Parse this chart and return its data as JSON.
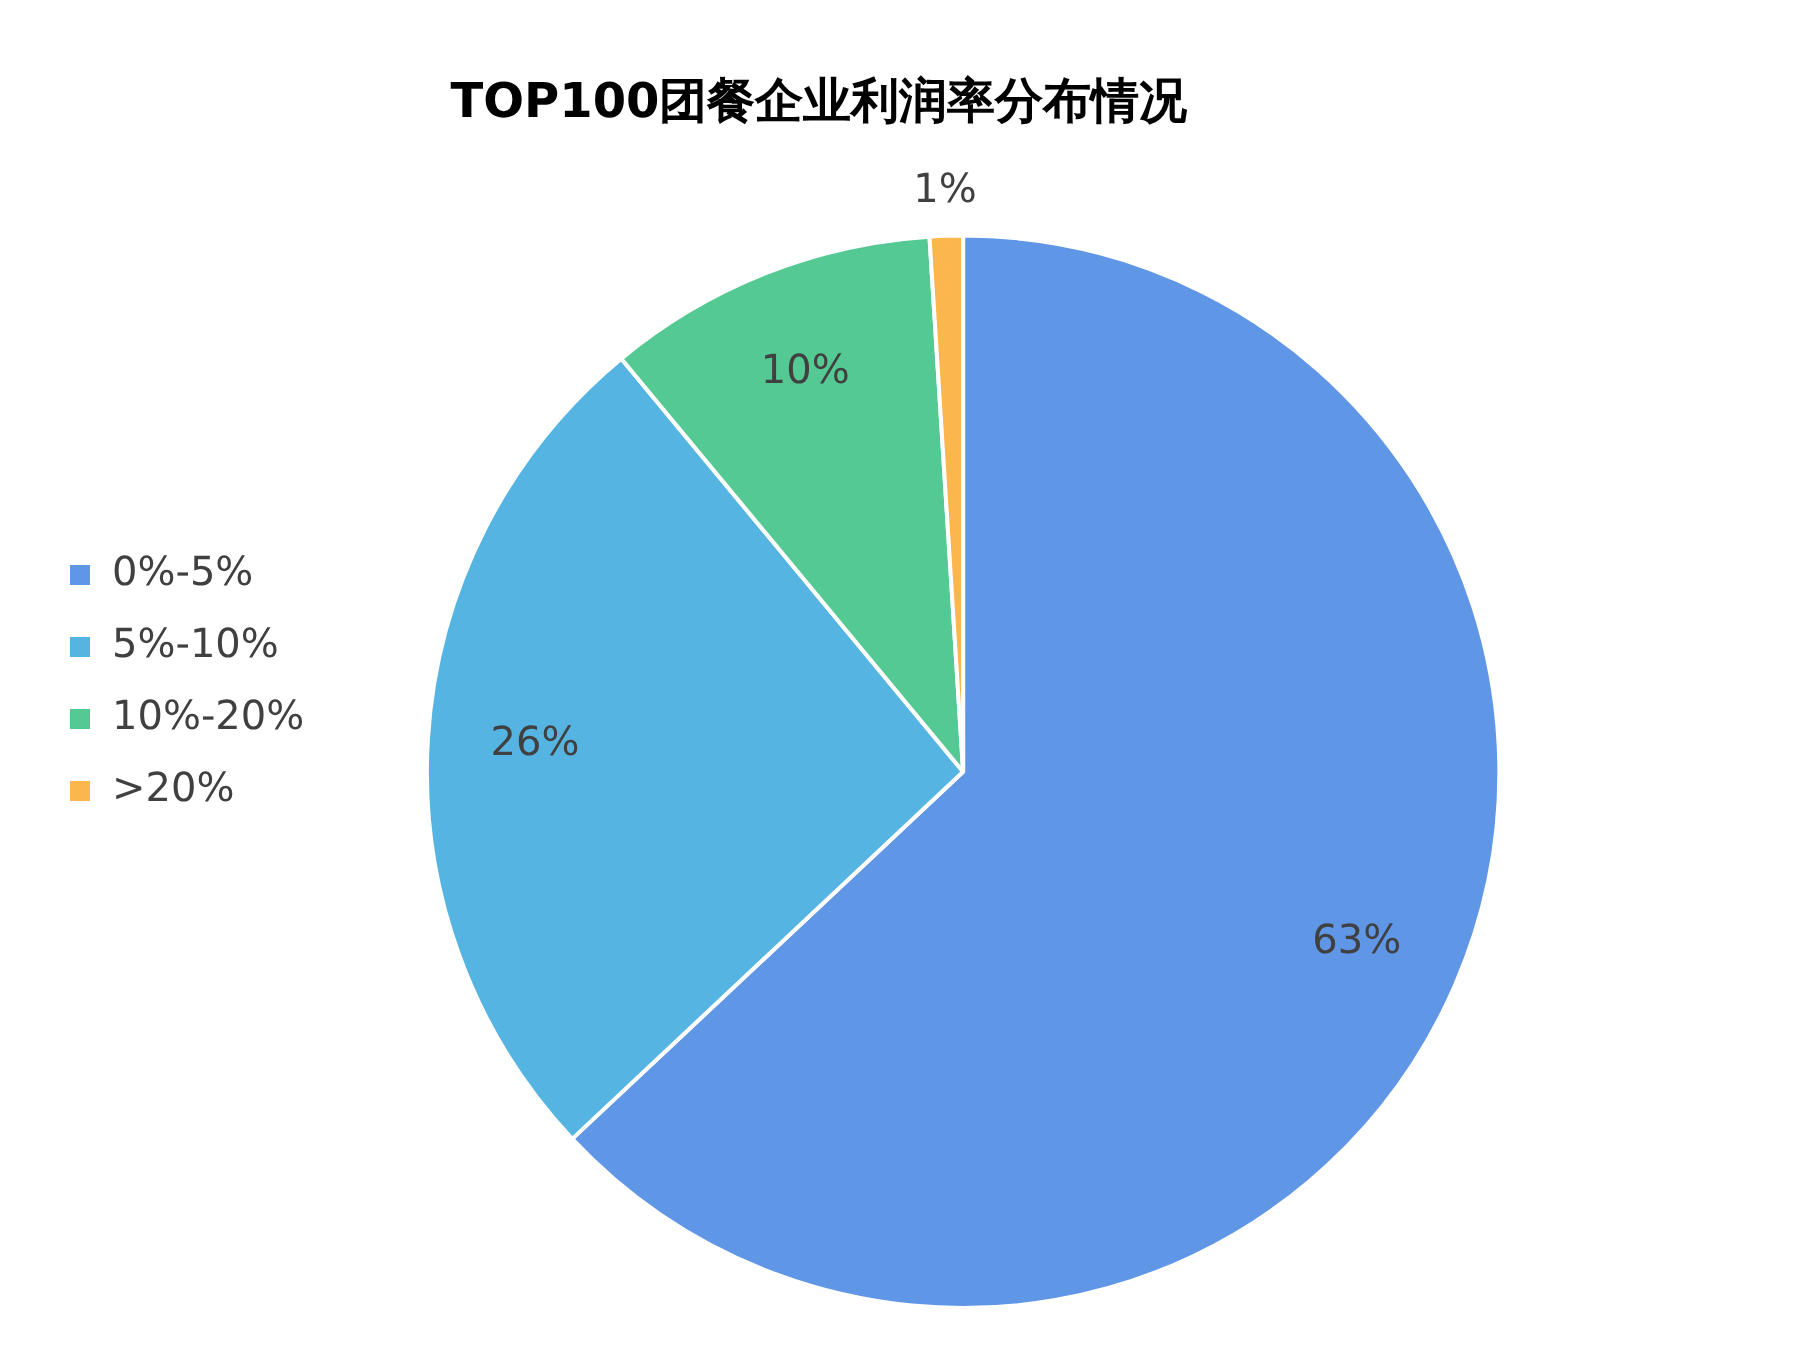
{
  "chart_data": {
    "type": "pie",
    "title": "TOP100团餐企业利润率分布情况",
    "categories": [
      "0%-5%",
      "5%-10%",
      "10%-20%",
      ">20%"
    ],
    "values": [
      63,
      26,
      10,
      1
    ],
    "colors": [
      "#6096e6",
      "#56b4e3",
      "#55c993",
      "#fbb74e"
    ],
    "value_labels": [
      "63%",
      "26%",
      "10%",
      "1%"
    ],
    "legend": "left"
  }
}
